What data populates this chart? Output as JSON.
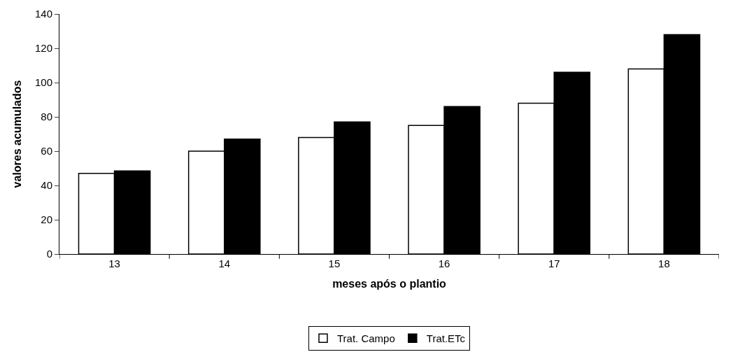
{
  "chart_data": {
    "type": "bar",
    "xlabel": "meses após o plantio",
    "ylabel": "valores acumulados",
    "categories": [
      "13",
      "14",
      "15",
      "16",
      "17",
      "18"
    ],
    "series": [
      {
        "name": "Trat. Campo",
        "color": "#ffffff",
        "values": [
          47,
          60,
          68,
          75,
          88,
          108
        ]
      },
      {
        "name": "Trat.ETc",
        "color": "#000000",
        "values": [
          48.5,
          67,
          77,
          86,
          106,
          128
        ]
      }
    ],
    "ylim": [
      0,
      140
    ],
    "yticks": [
      0,
      20,
      40,
      60,
      80,
      100,
      120,
      140
    ],
    "legend": "bottom"
  }
}
